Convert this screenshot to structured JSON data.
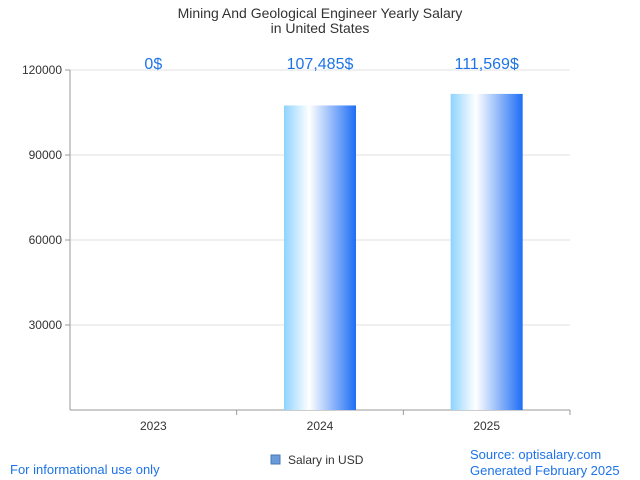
{
  "chart_data": {
    "type": "bar",
    "title_lines": [
      "Mining And Geological Engineer Yearly Salary",
      "in United States"
    ],
    "categories": [
      "2023",
      "2024",
      "2025"
    ],
    "series": [
      {
        "name": "Salary in USD",
        "values": [
          0,
          107485,
          111569
        ]
      }
    ],
    "data_labels": [
      "0$",
      "107,485$",
      "111,569$"
    ],
    "ylim": [
      0,
      120000
    ],
    "yticks": [
      30000,
      60000,
      90000,
      120000
    ],
    "ytick_labels": [
      "30000",
      "60000",
      "90000",
      "120000"
    ],
    "grid": true,
    "legend_position": "bottom-center",
    "colors": {
      "bar_light": "#ffffff",
      "bar_mid": "#8fd3fe",
      "bar_dark": "#1e6ef5",
      "label": "#1e73e8",
      "grid": "#e0e0e0",
      "axis": "#999999",
      "text": "#333333"
    }
  },
  "footer": {
    "disclaimer": "For informational use only",
    "source": "Source: optisalary.com",
    "generated": "Generated February 2025"
  }
}
